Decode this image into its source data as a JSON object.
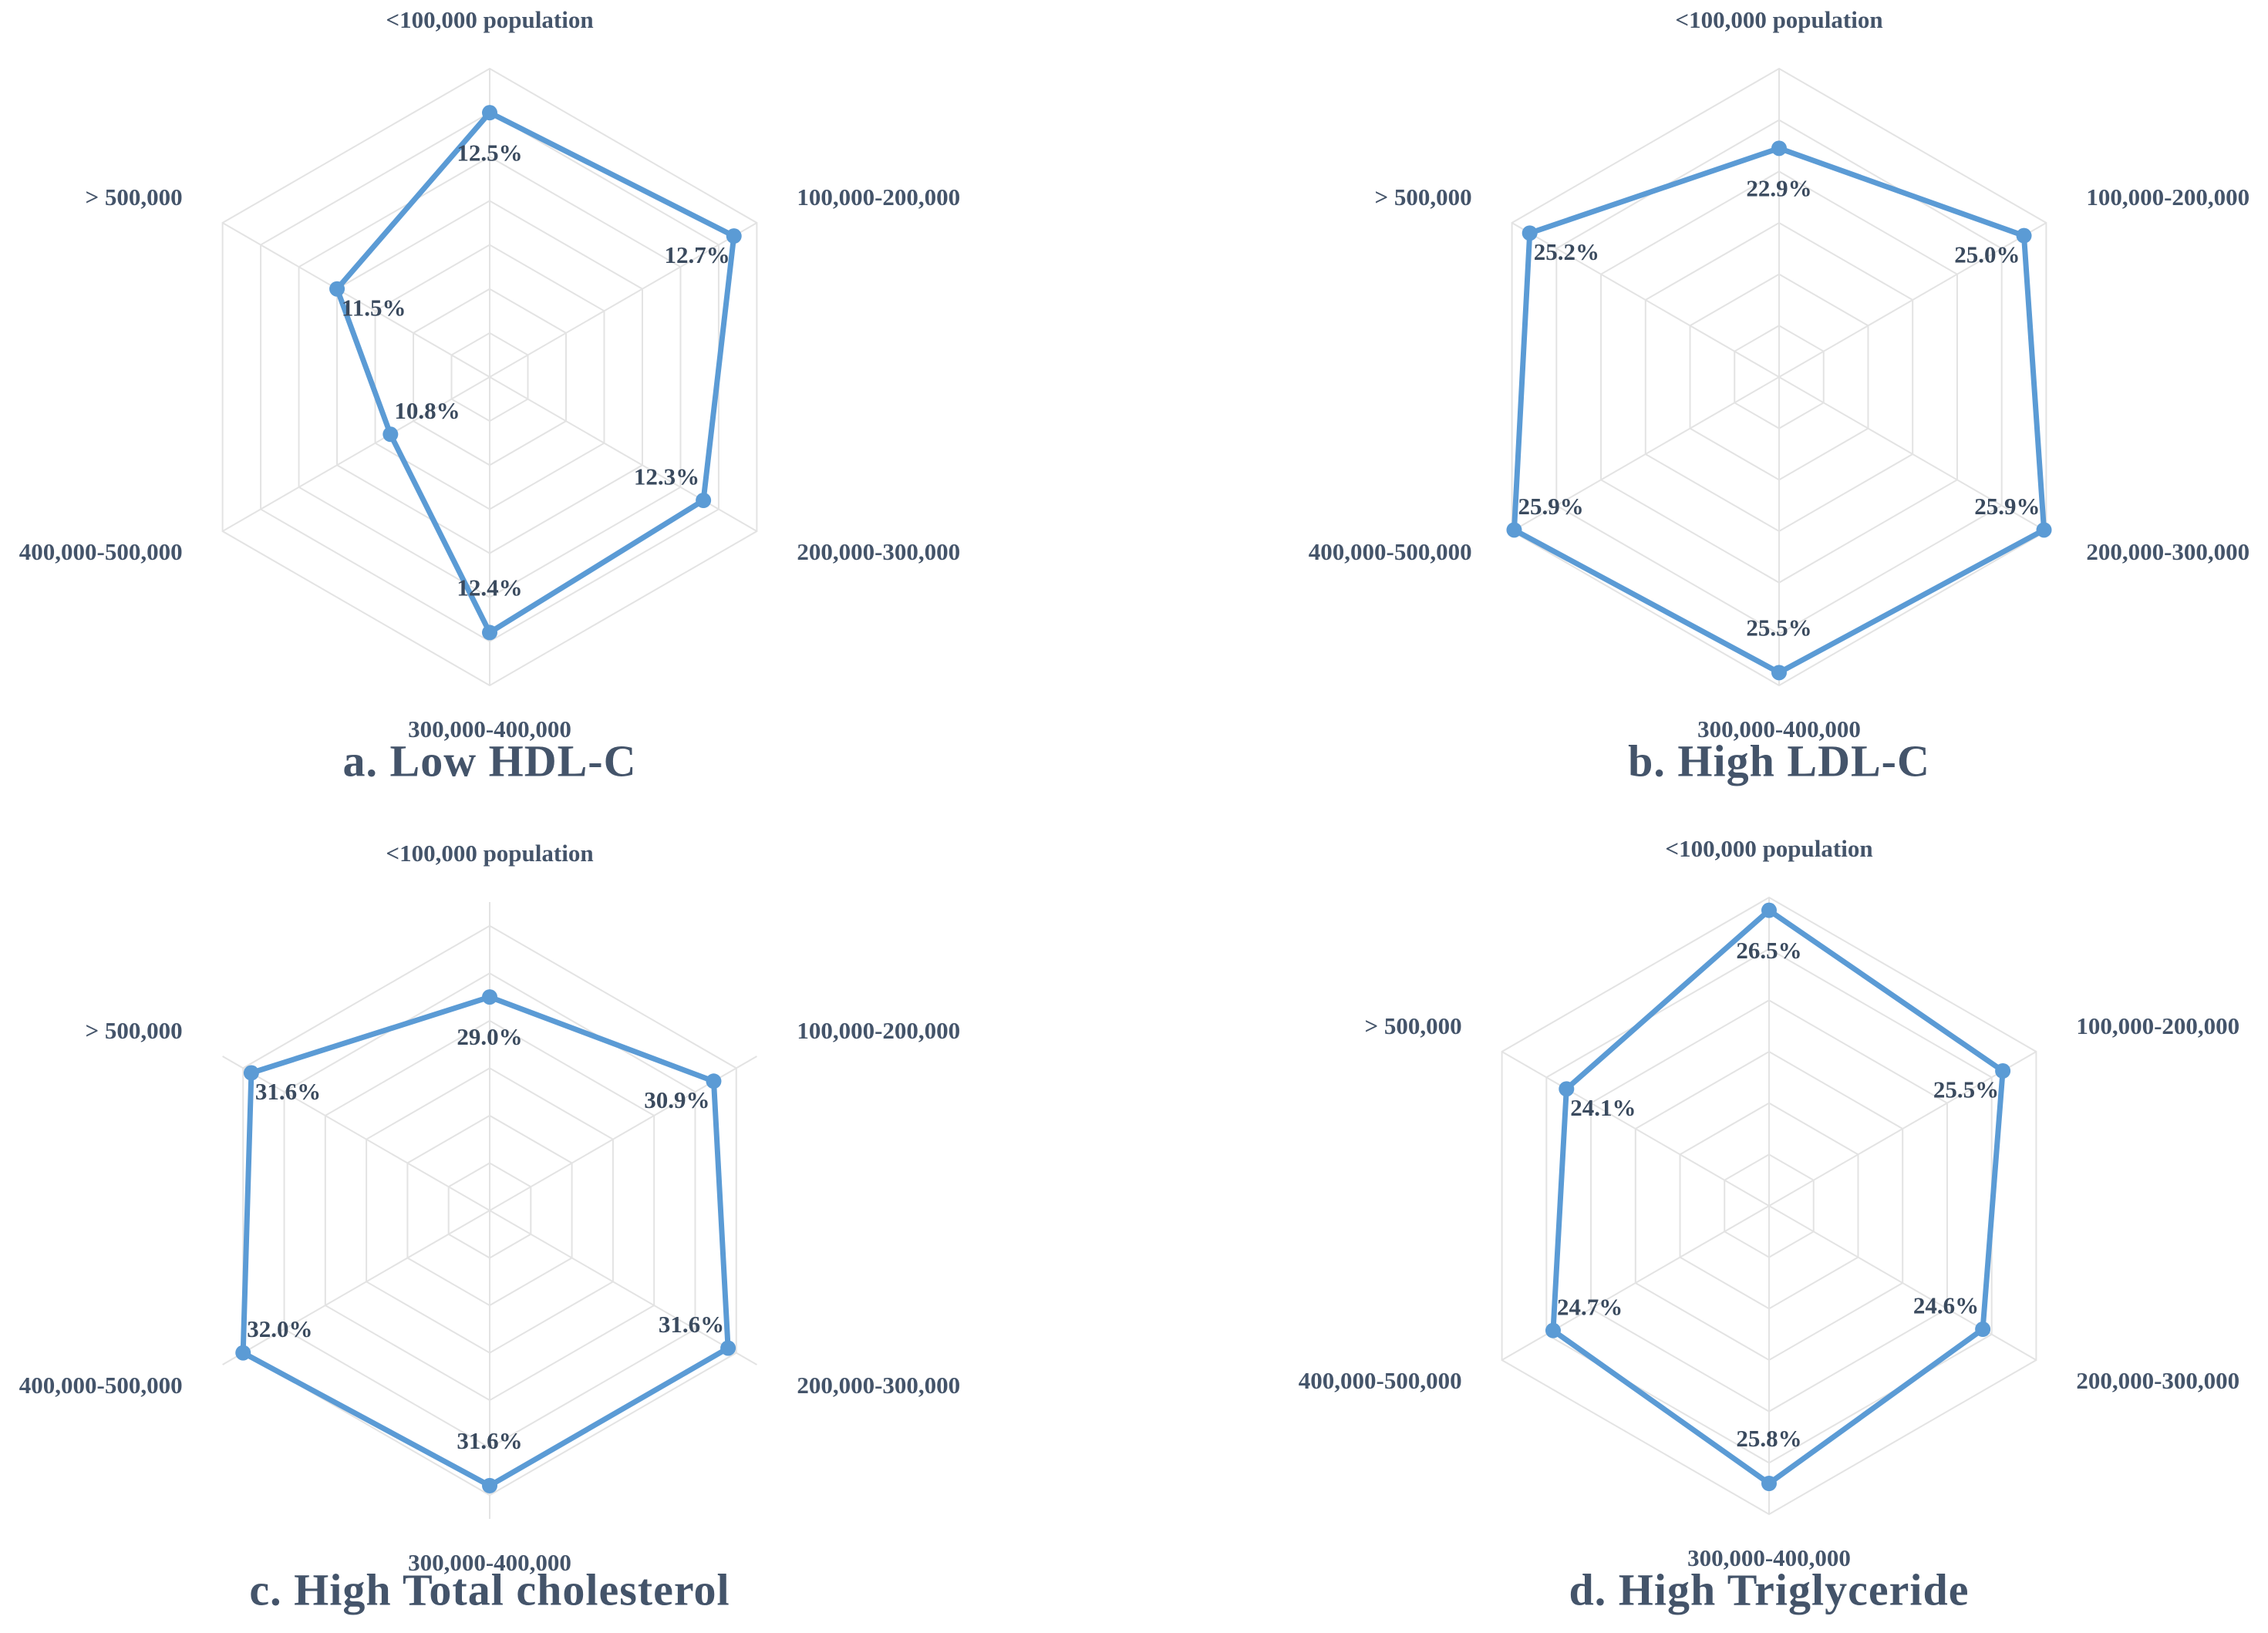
{
  "chart_data": [
    {
      "type": "radar",
      "title": "a. Low HDL-C",
      "categories": [
        "<100,000 population",
        "100,000-200,000",
        "200,000-300,000",
        "300,000-400,000",
        "400,000-500,000",
        "> 500,000"
      ],
      "values": [
        12.5,
        12.7,
        12.3,
        12.4,
        10.8,
        11.5
      ],
      "value_labels": [
        "12.5%",
        "12.7%",
        "12.3%",
        "12.4%",
        "10.8%",
        "11.5%"
      ],
      "color": "#5b9bd5",
      "ylim": [
        9.5,
        13
      ],
      "yticks": [
        9.5,
        10,
        10.5,
        11,
        11.5,
        12,
        12.5,
        13
      ],
      "grid": true
    },
    {
      "type": "radar",
      "title": "b. High LDL-C",
      "categories": [
        "<100,000 population",
        "100,000-200,000",
        "200,000-300,000",
        "300,000-400,000",
        "400,000-500,000",
        "> 500,000"
      ],
      "values": [
        22.9,
        25.0,
        25.9,
        25.5,
        25.9,
        25.2
      ],
      "value_labels": [
        "22.9%",
        "25.0%",
        "25.9%",
        "25.5%",
        "25.9%",
        "25.2%"
      ],
      "color": "#5b9bd5",
      "ylim": [
        14,
        26
      ],
      "yticks": [
        14,
        16,
        18,
        20,
        22,
        24,
        26
      ],
      "grid": true
    },
    {
      "type": "radar",
      "title": "c. High Total cholesterol",
      "categories": [
        "<100,000 population",
        "100,000-200,000",
        "200,000-300,000",
        "300,000-400,000",
        "400,000-500,000",
        "> 500,000"
      ],
      "values": [
        29.0,
        30.9,
        31.6,
        31.6,
        32.0,
        31.6
      ],
      "value_labels": [
        "29.0%",
        "30.9%",
        "31.6%",
        "31.6%",
        "32.0%",
        "31.6%"
      ],
      "color": "#5b9bd5",
      "ylim": [
        20,
        33
      ],
      "yticks": [
        20,
        22,
        24,
        26,
        28,
        30,
        32
      ],
      "grid": true
    },
    {
      "type": "radar",
      "title": "d. High Triglyceride",
      "categories": [
        "<100,000 population",
        "100,000-200,000",
        "200,000-300,000",
        "300,000-400,000",
        "400,000-500,000",
        "> 500,000"
      ],
      "values": [
        26.5,
        25.5,
        24.6,
        25.8,
        24.7,
        24.1
      ],
      "value_labels": [
        "26.5%",
        "25.5%",
        "24.6%",
        "25.8%",
        "24.7%",
        "24.1%"
      ],
      "color": "#5b9bd5",
      "ylim": [
        15,
        27
      ],
      "yticks": [
        15,
        17,
        19,
        21,
        23,
        25,
        27
      ],
      "grid": true
    }
  ]
}
